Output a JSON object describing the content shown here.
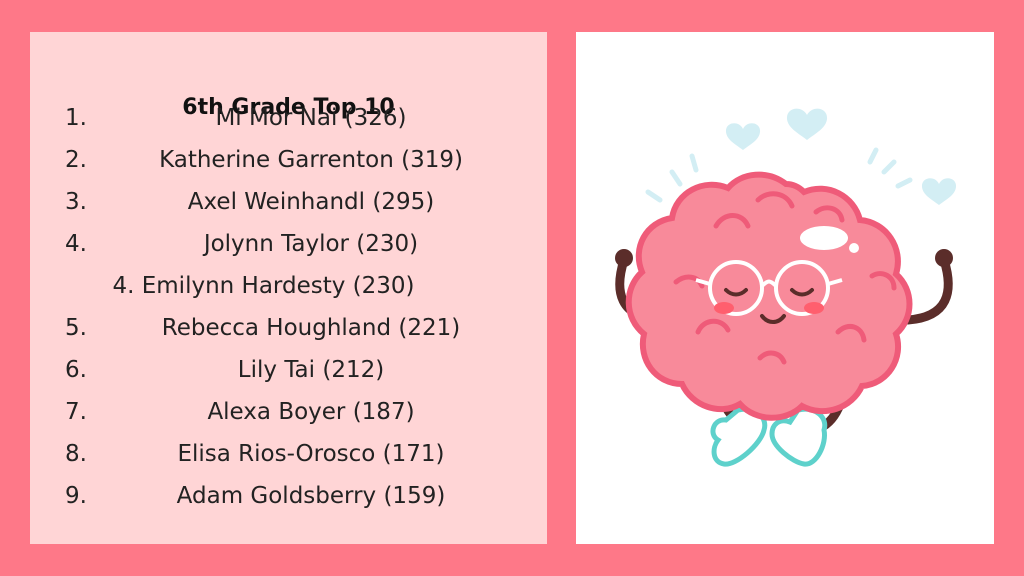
{
  "title": "6th Grade Top 10",
  "rankings": [
    {
      "rank": "1.",
      "name": "Mi Mor Nai (326)"
    },
    {
      "rank": "2.",
      "name": "Katherine Garrenton (319)"
    },
    {
      "rank": "3.",
      "name": "Axel Weinhandl (295)"
    },
    {
      "rank": "4.",
      "name": "Jolynn Taylor (230)"
    },
    {
      "rank": "",
      "name": "4. Emilynn Hardesty (230)"
    },
    {
      "rank": "5.",
      "name": "Rebecca Houghland (221)"
    },
    {
      "rank": "6.",
      "name": "Lily Tai (212)"
    },
    {
      "rank": "7.",
      "name": "Alexa Boyer (187)"
    },
    {
      "rank": "8.",
      "name": "Elisa Rios-Orosco (171)"
    },
    {
      "rank": "9.",
      "name": "Adam Goldsberry (159)"
    }
  ],
  "illustration": {
    "icon": "meditating-brain-icon",
    "colors": {
      "background": "#fe7888",
      "left_panel": "#ffd5d6",
      "brain": "#f88a9a",
      "brain_outline": "#ef5b79",
      "feet": "#5ed1cb",
      "hearts": "#d3eef4",
      "arms": "#5b2d2a"
    }
  }
}
